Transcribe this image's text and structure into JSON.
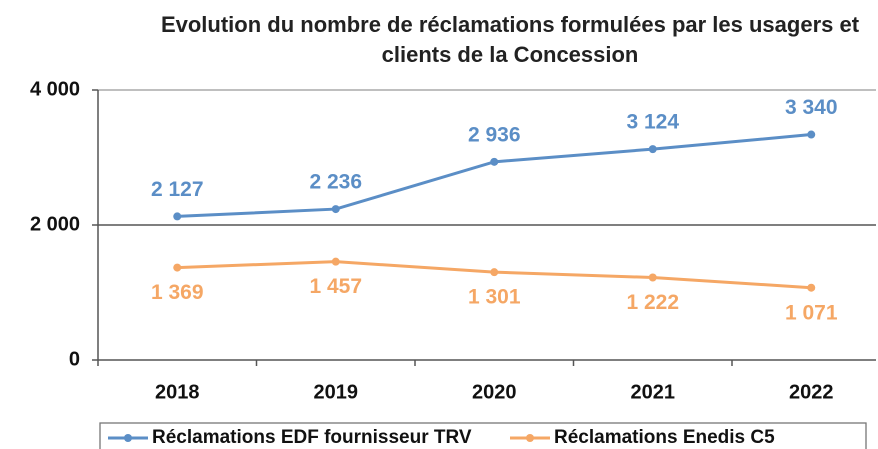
{
  "chart_data": {
    "type": "line",
    "title": "Evolution du nombre de réclamations formulées par les usagers et clients de la Concession",
    "categories": [
      "2018",
      "2019",
      "2020",
      "2021",
      "2022"
    ],
    "series": [
      {
        "name": "Réclamations EDF fournisseur TRV",
        "color": "#5b8ec6",
        "values": [
          2127,
          2236,
          2936,
          3124,
          3340
        ],
        "value_labels": [
          "2 127",
          "2 236",
          "2 936",
          "3 124",
          "3 340"
        ]
      },
      {
        "name": "Réclamations Enedis C5",
        "color": "#f5a765",
        "values": [
          1369,
          1457,
          1301,
          1222,
          1071
        ],
        "value_labels": [
          "1 369",
          "1 457",
          "1 301",
          "1 222",
          "1 071"
        ]
      }
    ],
    "ylim": [
      0,
      4000
    ],
    "yticks": [
      {
        "value": 0,
        "label": "0"
      },
      {
        "value": 2000,
        "label": "2 000"
      },
      {
        "value": 4000,
        "label": "4 000"
      }
    ],
    "grid": true,
    "legend": "bottom"
  }
}
